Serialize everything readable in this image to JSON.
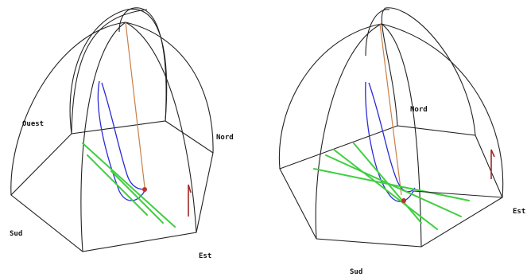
{
  "left_view": {
    "labels": {
      "west": "Ouest",
      "north": "Nord",
      "south": "Sud",
      "east": "Est"
    }
  },
  "right_view": {
    "labels": {
      "north": "Nord",
      "south": "Sud",
      "east": "Est"
    }
  },
  "colors": {
    "frame": "#222222",
    "sun_path": "#2b2bd6",
    "shadow_lines": "#3fcf3f",
    "vertical_axis": "#c9804a",
    "marker": "#a32828"
  }
}
